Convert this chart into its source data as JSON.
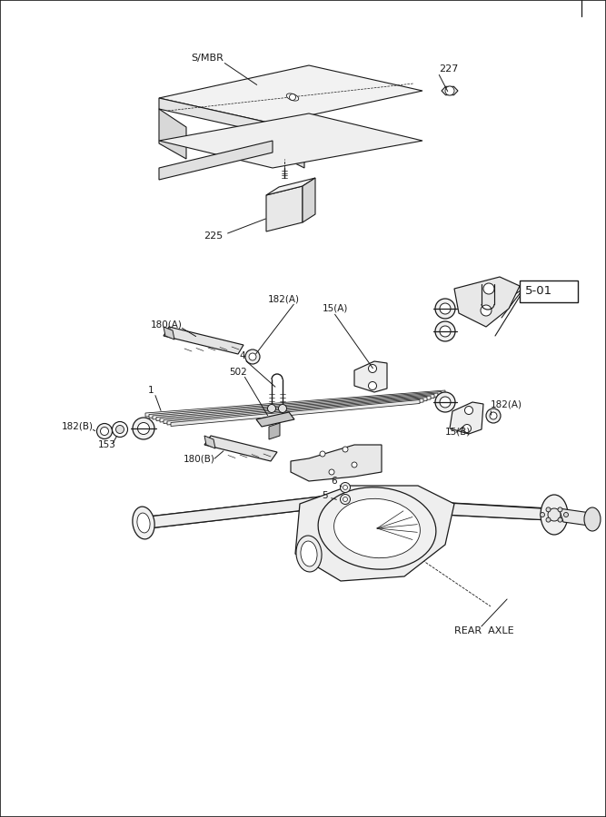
{
  "bg_color": "#ffffff",
  "line_color": "#1a1a1a",
  "fig_width": 6.67,
  "fig_height": 9.0,
  "labels": {
    "SMBR": "S/MBR",
    "n227": "227",
    "n225": "225",
    "box501": "5-01",
    "l182A_top": "182(A)",
    "l15A": "15(A)",
    "l180A": "180(A)",
    "l4": "4",
    "l502": "502",
    "l1": "1",
    "l182B": "182(B)",
    "l153": "153",
    "l180B": "180(B)",
    "l6": "6",
    "l5": "5",
    "l182A_rt": "182(A)",
    "l15B": "15(B)",
    "REAR_AXLE": "REAR  AXLE"
  }
}
